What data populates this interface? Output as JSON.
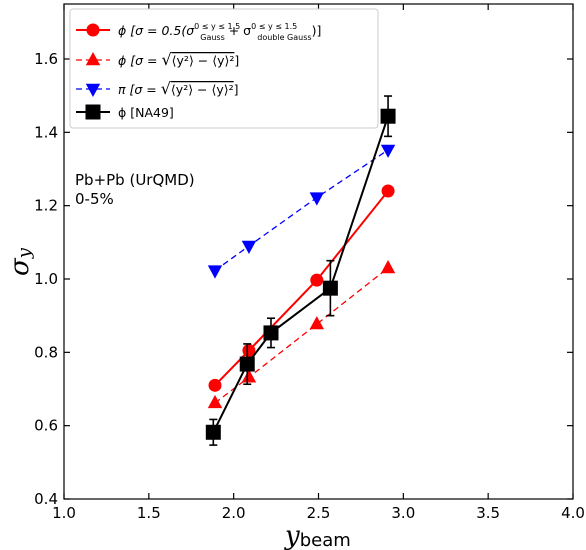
{
  "chart_data": {
    "type": "line",
    "xlabel": "y",
    "xlabel_sub": "beam",
    "ylabel": "σ",
    "ylabel_sub": "y",
    "xlim": [
      1.0,
      4.0
    ],
    "ylim": [
      0.4,
      1.75
    ],
    "x_ticks": [
      "1.0",
      "1.5",
      "2.0",
      "2.5",
      "3.0",
      "3.5",
      "4.0"
    ],
    "y_ticks": [
      "0.4",
      "0.6",
      "0.8",
      "1.0",
      "1.2",
      "1.4",
      "1.6"
    ],
    "grid": false,
    "legend_position": "top-left",
    "annotation": [
      "Pb+Pb (UrQMD)",
      "0-5%"
    ],
    "series": [
      {
        "name": "ϕ  [σ = 0.5(σ_Gauss^{0≤y≤1.5} + σ_doubleGauss^{0≤y≤1.5})]",
        "color": "#ff0000",
        "marker": "circle",
        "line": "solid",
        "x": [
          1.89,
          2.09,
          2.49,
          2.91
        ],
        "y": [
          0.71,
          0.805,
          0.997,
          1.24
        ]
      },
      {
        "name": "ϕ  [σ = √(⟨y²⟩ − ⟨y⟩²)]",
        "color": "#ff0000",
        "marker": "triangle-up",
        "line": "dashed",
        "x": [
          1.89,
          2.09,
          2.49,
          2.91
        ],
        "y": [
          0.662,
          0.732,
          0.877,
          1.03
        ]
      },
      {
        "name": "π  [σ = √(⟨y²⟩ − ⟨y⟩²)]",
        "color": "#0000ff",
        "marker": "triangle-down",
        "line": "dashed",
        "x": [
          1.89,
          2.09,
          2.49,
          2.91
        ],
        "y": [
          1.023,
          1.09,
          1.222,
          1.352
        ]
      },
      {
        "name": "ϕ  [NA49]",
        "color": "#000000",
        "marker": "square",
        "line": "solid",
        "x": [
          1.88,
          2.08,
          2.22,
          2.57,
          2.91
        ],
        "y": [
          0.582,
          0.768,
          0.853,
          0.975,
          1.444
        ],
        "yerr": [
          0.035,
          0.055,
          0.04,
          0.075,
          0.055
        ]
      }
    ]
  }
}
